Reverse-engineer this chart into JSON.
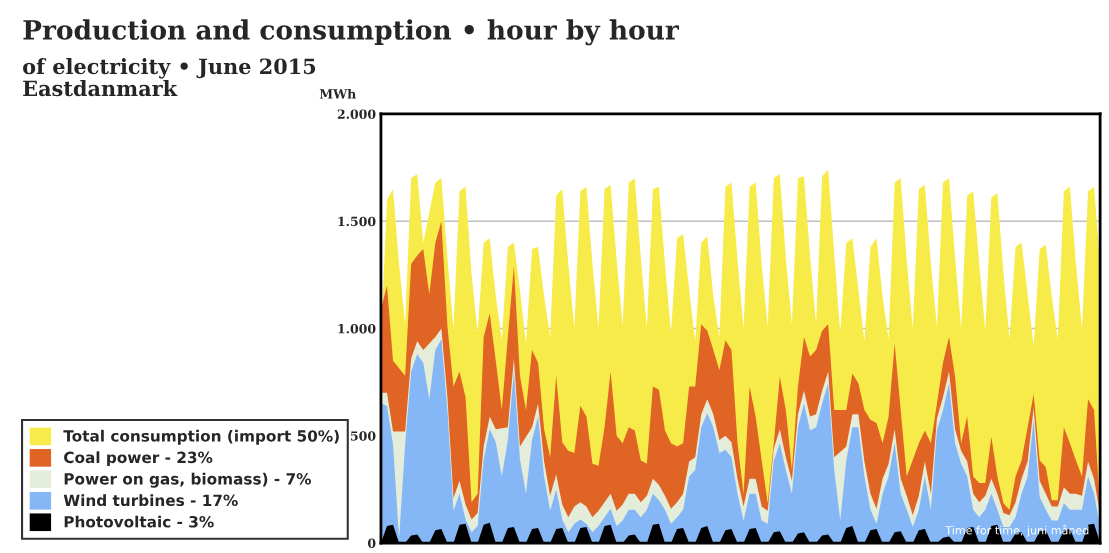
{
  "chart_data": {
    "type": "area",
    "title": "Production and consumption • hour by hour",
    "subtitle": "of electricity • June 2015\nEastdanmark",
    "ylabel": "MWh",
    "annotations": [
      "Time for time, juni måned"
    ],
    "categories": [
      null,
      null,
      null,
      null,
      null,
      null,
      null,
      null,
      null,
      null,
      null,
      null,
      null,
      null,
      null,
      null,
      null,
      null,
      null,
      null,
      null,
      null,
      null,
      null,
      null,
      null,
      null,
      null,
      null,
      null,
      null,
      null,
      null,
      null,
      null,
      null,
      null,
      null,
      null,
      null,
      null,
      null,
      null,
      null,
      null,
      null,
      null,
      null,
      null,
      null,
      null,
      null,
      null,
      null,
      null,
      null,
      null,
      null,
      null,
      null,
      null,
      null,
      null,
      null,
      null,
      null,
      null,
      null,
      null,
      null,
      null,
      null,
      null,
      null,
      null,
      null,
      null,
      null,
      null,
      null,
      null,
      null,
      null,
      null,
      null,
      null,
      null,
      null,
      null,
      null,
      null,
      null,
      null,
      null,
      null,
      null,
      null,
      null,
      null,
      null,
      null,
      null,
      null,
      null,
      null,
      null,
      null,
      null,
      null,
      null,
      null,
      null,
      null,
      null,
      null,
      null,
      null,
      null,
      null,
      null
    ],
    "series": [
      {
        "name": "Total consumption (import 50%)",
        "color": "#f7eb4a",
        "values": [
          950,
          1600,
          1650,
          1300,
          1020,
          1700,
          1720,
          1400,
          null,
          1680,
          1700,
          1330,
          1000,
          1640,
          1660,
          1250,
          980,
          1400,
          1420,
          1150,
          950,
          1380,
          1400,
          1180,
          930,
          1370,
          1380,
          1150,
          960,
          1620,
          1650,
          1300,
          1000,
          1640,
          1660,
          1300,
          1000,
          1650,
          1670,
          1320,
          1010,
          1680,
          1700,
          1330,
          1000,
          1650,
          1660,
          1300,
          980,
          1420,
          1440,
          1180,
          940,
          1400,
          1430,
          1150,
          960,
          1660,
          1680,
          1320,
          1000,
          1660,
          1680,
          1300,
          1010,
          1700,
          1720,
          1330,
          1020,
          1700,
          1710,
          1340,
          1020,
          1710,
          1740,
          1350,
          980,
          1400,
          1420,
          1180,
          940,
          1380,
          1420,
          1150,
          950,
          1680,
          1700,
          1320,
          1000,
          1650,
          1670,
          1300,
          1010,
          1680,
          1700,
          1330,
          1000,
          1620,
          1640,
          1300,
          990,
          1610,
          1630,
          1260,
          950,
          1380,
          1400,
          1160,
          920,
          1370,
          1390,
          1150,
          950,
          1640,
          1660,
          1300,
          1000,
          1640,
          1660,
          1300
        ]
      },
      {
        "name": "Coal power - 23%",
        "color": "#e06424",
        "values": [
          1090,
          1200,
          850,
          null,
          780,
          1300,
          1340,
          1370,
          1160,
          1400,
          1500,
          1010,
          730,
          800,
          680,
          190,
          230,
          960,
          1070,
          850,
          620,
          960,
          1290,
          780,
          620,
          900,
          840,
          530,
          400,
          780,
          470,
          430,
          420,
          640,
          590,
          370,
          360,
          540,
          800,
          500,
          465,
          540,
          525,
          385,
          370,
          730,
          715,
          525,
          465,
          450,
          465,
          730,
          730,
          1020,
          990,
          900,
          805,
          945,
          900,
          465,
          230,
          730,
          590,
          385,
          185,
          465,
          775,
          620,
          340,
          730,
          960,
          870,
          900,
          990,
          1020,
          620,
          null,
          620,
          790,
          745,
          620,
          575,
          560,
          465,
          590,
          930,
          620,
          310,
          null,
          465,
          525,
          465,
          650,
          840,
          960,
          775,
          465,
          590,
          310,
          280,
          280,
          495,
          310,
          185,
          155,
          310,
          385,
          540,
          695,
          385,
          355,
          200,
          200,
          540,
          465,
          385,
          310,
          670,
          620,
          155
        ]
      },
      {
        "name": "Power on gas, biomass) - 7%",
        "color": "#e3edd9",
        "values": [
          700,
          700,
          520,
          null,
          520,
          860,
          940,
          900,
          null,
          960,
          1000,
          680,
          210,
          290,
          180,
          110,
          140,
          450,
          590,
          530,
          null,
          540,
          860,
          450,
          null,
          540,
          650,
          380,
          220,
          320,
          180,
          120,
          170,
          190,
          170,
          120,
          150,
          190,
          230,
          150,
          180,
          230,
          230,
          190,
          220,
          300,
          270,
          220,
          160,
          190,
          230,
          380,
          400,
          600,
          670,
          600,
          480,
          500,
          470,
          300,
          170,
          300,
          300,
          170,
          150,
          440,
          530,
          400,
          290,
          600,
          710,
          590,
          600,
          710,
          800,
          400,
          null,
          450,
          600,
          600,
          380,
          230,
          160,
          300,
          370,
          530,
          300,
          220,
          130,
          220,
          380,
          230,
          580,
          680,
          800,
          530,
          430,
          380,
          230,
          190,
          220,
          300,
          230,
          140,
          130,
          190,
          300,
          380,
          630,
          290,
          230,
          170,
          170,
          260,
          230,
          230,
          220,
          380,
          300,
          130
        ]
      },
      {
        "name": "Wind turbines - 17%",
        "color": "#85b7f7",
        "values": [
          650,
          640,
          460,
          20,
          460,
          800,
          880,
          840,
          670,
          900,
          950,
          620,
          150,
          230,
          110,
          50,
          80,
          390,
          530,
          470,
          310,
          480,
          800,
          390,
          230,
          480,
          590,
          310,
          150,
          250,
          110,
          50,
          90,
          110,
          90,
          50,
          80,
          120,
          160,
          80,
          105,
          155,
          155,
          120,
          155,
          230,
          200,
          155,
          90,
          120,
          155,
          310,
          340,
          540,
          605,
          540,
          420,
          435,
          400,
          230,
          105,
          230,
          230,
          105,
          90,
          385,
          465,
          340,
          230,
          540,
          650,
          525,
          540,
          650,
          745,
          340,
          105,
          385,
          540,
          540,
          310,
          155,
          90,
          230,
          310,
          465,
          230,
          155,
          75,
          155,
          310,
          155,
          525,
          620,
          745,
          465,
          370,
          310,
          155,
          120,
          155,
          230,
          155,
          75,
          75,
          120,
          230,
          310,
          575,
          215,
          155,
          105,
          105,
          185,
          155,
          155,
          155,
          310,
          230,
          75
        ]
      },
      {
        "name": "Photovoltaic - 3%",
        "color": "#000000",
        "values": [
          0,
          80,
          85,
          0,
          0,
          35,
          40,
          0,
          0,
          60,
          65,
          0,
          0,
          85,
          90,
          0,
          0,
          85,
          95,
          0,
          0,
          70,
          75,
          0,
          0,
          65,
          70,
          0,
          0,
          65,
          70,
          0,
          0,
          70,
          75,
          0,
          0,
          80,
          85,
          0,
          0,
          35,
          40,
          0,
          0,
          85,
          90,
          0,
          0,
          65,
          70,
          0,
          0,
          70,
          80,
          0,
          0,
          60,
          65,
          0,
          0,
          65,
          70,
          0,
          0,
          50,
          55,
          0,
          0,
          45,
          50,
          0,
          0,
          35,
          40,
          0,
          0,
          70,
          80,
          0,
          0,
          60,
          65,
          0,
          0,
          50,
          55,
          0,
          0,
          60,
          65,
          0,
          0,
          25,
          30,
          0,
          0,
          70,
          75,
          0,
          0,
          80,
          85,
          0,
          0,
          45,
          50,
          0,
          0,
          55,
          60,
          0,
          0,
          60,
          65,
          0,
          0,
          85,
          90,
          0
        ]
      }
    ],
    "ylim": [
      0,
      2000
    ],
    "yticks": [
      0,
      500,
      {
        "value": 1000,
        "label": "1.000"
      },
      {
        "value": 1500,
        "label": "1.500"
      },
      {
        "value": 2000,
        "label": "2.000"
      }
    ],
    "grid": "y",
    "legend": "left",
    "tick_labels": "y"
  }
}
